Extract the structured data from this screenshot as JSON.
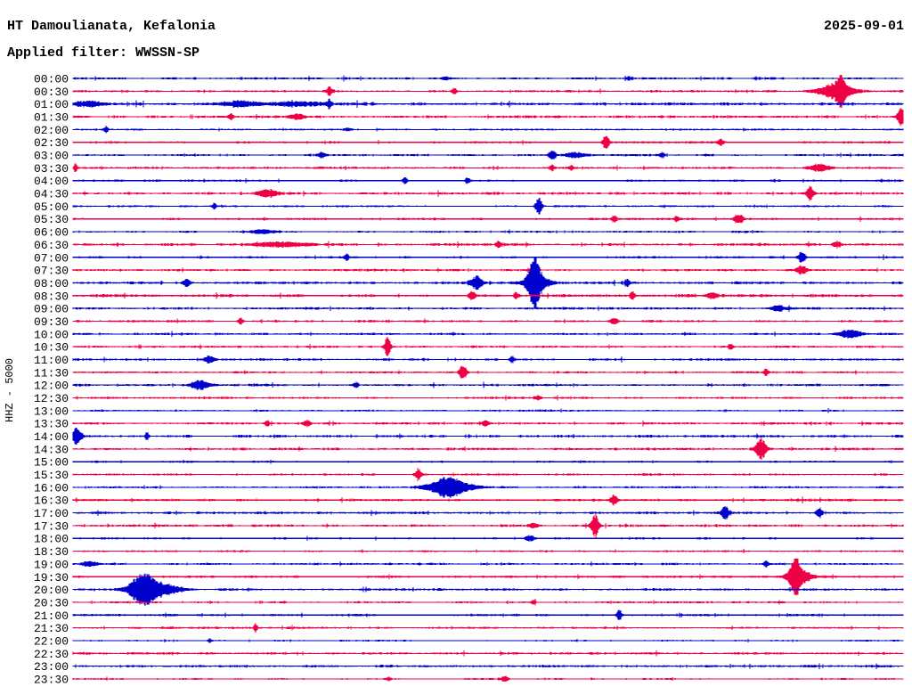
{
  "header": {
    "title": "HT Damoulianata, Kefalonia",
    "date": "2025-09-01",
    "filter": "Applied filter: WWSSN-SP"
  },
  "chart_data": {
    "type": "line",
    "subtype": "helicorder-seismogram",
    "title": "HT Damoulianata, Kefalonia",
    "date": "2025-09-01",
    "applied_filter": "WWSSN-SP",
    "ylabel": "HHZ - 5000",
    "channel": "HHZ",
    "scale": 5000,
    "minutes_per_row": 30,
    "time_start": "00:00",
    "time_end": "24:00",
    "legend_position": "none",
    "grid": false,
    "trace_colors": {
      "blue": "#0000cc",
      "red": "#ee0044"
    },
    "rows": [
      {
        "time": "00:00",
        "color": "blue",
        "noise": 1.0,
        "events": [
          {
            "x": 0.45,
            "amp": 1.5,
            "w": 4
          },
          {
            "x": 0.67,
            "amp": 2.0,
            "w": 3
          }
        ]
      },
      {
        "time": "00:30",
        "color": "red",
        "noise": 1.0,
        "events": [
          {
            "x": 0.309,
            "amp": 5,
            "w": 2
          },
          {
            "x": 0.459,
            "amp": 4,
            "w": 2
          },
          {
            "x": 0.92,
            "amp": 9,
            "w": 14
          },
          {
            "x": 0.925,
            "amp": 14,
            "w": 3
          }
        ]
      },
      {
        "time": "01:00",
        "color": "blue",
        "noise": 1.35,
        "events": [
          {
            "x": 0.02,
            "amp": 3,
            "w": 10
          },
          {
            "x": 0.2,
            "amp": 3,
            "w": 15
          },
          {
            "x": 0.27,
            "amp": 2.5,
            "w": 20
          },
          {
            "x": 0.309,
            "amp": 6,
            "w": 2
          }
        ]
      },
      {
        "time": "01:30",
        "color": "red",
        "noise": 1.1,
        "events": [
          {
            "x": 0.19,
            "amp": 4,
            "w": 2
          },
          {
            "x": 0.27,
            "amp": 3,
            "w": 6
          },
          {
            "x": 0.998,
            "amp": 13,
            "w": 3
          }
        ]
      },
      {
        "time": "02:00",
        "color": "blue",
        "noise": 0.85,
        "events": [
          {
            "x": 0.04,
            "amp": 3.5,
            "w": 2
          },
          {
            "x": 0.33,
            "amp": 2,
            "w": 3
          }
        ]
      },
      {
        "time": "02:30",
        "color": "red",
        "noise": 1.0,
        "events": [
          {
            "x": 0.642,
            "amp": 9,
            "w": 2.5
          },
          {
            "x": 0.78,
            "amp": 3.5,
            "w": 3
          }
        ]
      },
      {
        "time": "03:00",
        "color": "blue",
        "noise": 1.0,
        "events": [
          {
            "x": 0.3,
            "amp": 3,
            "w": 3
          },
          {
            "x": 0.578,
            "amp": 4.5,
            "w": 3
          },
          {
            "x": 0.605,
            "amp": 3,
            "w": 8
          },
          {
            "x": 0.71,
            "amp": 3,
            "w": 2
          }
        ]
      },
      {
        "time": "03:30",
        "color": "red",
        "noise": 1.0,
        "events": [
          {
            "x": 0.003,
            "amp": 5,
            "w": 1.5
          },
          {
            "x": 0.577,
            "amp": 3.5,
            "w": 2
          },
          {
            "x": 0.6,
            "amp": 3,
            "w": 2
          },
          {
            "x": 0.9,
            "amp": 4.5,
            "w": 8
          }
        ]
      },
      {
        "time": "04:00",
        "color": "blue",
        "noise": 1.0,
        "events": [
          {
            "x": 0.4,
            "amp": 4,
            "w": 2
          },
          {
            "x": 0.475,
            "amp": 4,
            "w": 2
          }
        ]
      },
      {
        "time": "04:30",
        "color": "red",
        "noise": 1.1,
        "events": [
          {
            "x": 0.235,
            "amp": 4,
            "w": 8
          },
          {
            "x": 0.888,
            "amp": 9,
            "w": 3
          }
        ]
      },
      {
        "time": "05:00",
        "color": "blue",
        "noise": 0.9,
        "events": [
          {
            "x": 0.17,
            "amp": 3.5,
            "w": 2
          },
          {
            "x": 0.561,
            "amp": 10,
            "w": 2.5
          }
        ]
      },
      {
        "time": "05:30",
        "color": "red",
        "noise": 1.0,
        "events": [
          {
            "x": 0.652,
            "amp": 4,
            "w": 2
          },
          {
            "x": 0.727,
            "amp": 3,
            "w": 2
          },
          {
            "x": 0.802,
            "amp": 6,
            "w": 4
          }
        ]
      },
      {
        "time": "06:00",
        "color": "blue",
        "noise": 0.9,
        "events": [
          {
            "x": 0.23,
            "amp": 2.5,
            "w": 10
          }
        ]
      },
      {
        "time": "06:30",
        "color": "red",
        "noise": 1.1,
        "events": [
          {
            "x": 0.25,
            "amp": 3,
            "w": 20
          },
          {
            "x": 0.513,
            "amp": 4,
            "w": 2
          },
          {
            "x": 0.92,
            "amp": 4,
            "w": 3
          }
        ]
      },
      {
        "time": "07:00",
        "color": "blue",
        "noise": 1.0,
        "events": [
          {
            "x": 0.33,
            "amp": 4,
            "w": 2
          },
          {
            "x": 0.878,
            "amp": 7,
            "w": 3
          }
        ]
      },
      {
        "time": "07:30",
        "color": "red",
        "noise": 1.0,
        "events": [
          {
            "x": 0.556,
            "amp": 10,
            "w": 2.5
          },
          {
            "x": 0.878,
            "amp": 5,
            "w": 4
          }
        ]
      },
      {
        "time": "08:00",
        "color": "blue",
        "noise": 1.2,
        "events": [
          {
            "x": 0.137,
            "amp": 5,
            "w": 3
          },
          {
            "x": 0.486,
            "amp": 7,
            "w": 5
          },
          {
            "x": 0.556,
            "amp": 25,
            "w": 4
          },
          {
            "x": 0.558,
            "amp": 10,
            "w": 10
          },
          {
            "x": 0.668,
            "amp": 4,
            "w": 2
          }
        ]
      },
      {
        "time": "08:30",
        "color": "red",
        "noise": 1.3,
        "events": [
          {
            "x": 0.481,
            "amp": 5,
            "w": 2.5
          },
          {
            "x": 0.534,
            "amp": 4,
            "w": 2
          },
          {
            "x": 0.674,
            "amp": 5,
            "w": 2
          },
          {
            "x": 0.77,
            "amp": 4,
            "w": 4
          }
        ]
      },
      {
        "time": "09:00",
        "color": "blue",
        "noise": 1.1,
        "events": [
          {
            "x": 0.85,
            "amp": 3,
            "w": 6
          }
        ]
      },
      {
        "time": "09:30",
        "color": "red",
        "noise": 1.0,
        "events": [
          {
            "x": 0.202,
            "amp": 3.5,
            "w": 2
          },
          {
            "x": 0.652,
            "amp": 3.5,
            "w": 3
          }
        ]
      },
      {
        "time": "10:00",
        "color": "blue",
        "noise": 1.0,
        "events": [
          {
            "x": 0.936,
            "amp": 5,
            "w": 9
          }
        ]
      },
      {
        "time": "10:30",
        "color": "red",
        "noise": 1.0,
        "events": [
          {
            "x": 0.379,
            "amp": 11,
            "w": 2.5
          },
          {
            "x": 0.792,
            "amp": 3.5,
            "w": 2
          }
        ]
      },
      {
        "time": "11:00",
        "color": "blue",
        "noise": 1.0,
        "events": [
          {
            "x": 0.164,
            "amp": 4,
            "w": 4
          },
          {
            "x": 0.529,
            "amp": 4,
            "w": 2
          }
        ]
      },
      {
        "time": "11:30",
        "color": "red",
        "noise": 1.0,
        "events": [
          {
            "x": 0.47,
            "amp": 8,
            "w": 3
          },
          {
            "x": 0.835,
            "amp": 4,
            "w": 2
          }
        ]
      },
      {
        "time": "12:00",
        "color": "blue",
        "noise": 1.1,
        "events": [
          {
            "x": 0.153,
            "amp": 5,
            "w": 7
          },
          {
            "x": 0.341,
            "amp": 3.5,
            "w": 2
          }
        ]
      },
      {
        "time": "12:30",
        "color": "red",
        "noise": 1.0,
        "events": [
          {
            "x": 0.56,
            "amp": 2.5,
            "w": 3
          }
        ]
      },
      {
        "time": "13:00",
        "color": "blue",
        "noise": 0.85,
        "events": []
      },
      {
        "time": "13:30",
        "color": "red",
        "noise": 1.0,
        "events": [
          {
            "x": 0.234,
            "amp": 3.5,
            "w": 2
          },
          {
            "x": 0.282,
            "amp": 4,
            "w": 3
          },
          {
            "x": 0.497,
            "amp": 3.5,
            "w": 3
          }
        ]
      },
      {
        "time": "14:00",
        "color": "blue",
        "noise": 1.1,
        "events": [
          {
            "x": 0.004,
            "amp": 9,
            "w": 4
          },
          {
            "x": 0.089,
            "amp": 5,
            "w": 1.5
          }
        ]
      },
      {
        "time": "14:30",
        "color": "red",
        "noise": 1.1,
        "events": [
          {
            "x": 0.829,
            "amp": 12,
            "w": 4
          }
        ]
      },
      {
        "time": "15:00",
        "color": "blue",
        "noise": 0.9,
        "events": []
      },
      {
        "time": "15:30",
        "color": "red",
        "noise": 1.0,
        "events": [
          {
            "x": 0.416,
            "amp": 7,
            "w": 2.5
          }
        ]
      },
      {
        "time": "16:00",
        "color": "blue",
        "noise": 1.0,
        "events": [
          {
            "x": 0.455,
            "amp": 8,
            "w": 18
          },
          {
            "x": 0.45,
            "amp": 5,
            "w": 8
          }
        ]
      },
      {
        "time": "16:30",
        "color": "red",
        "noise": 1.1,
        "events": [
          {
            "x": 0.652,
            "amp": 6,
            "w": 3
          }
        ]
      },
      {
        "time": "17:00",
        "color": "blue",
        "noise": 1.1,
        "events": [
          {
            "x": 0.786,
            "amp": 8,
            "w": 3
          },
          {
            "x": 0.899,
            "amp": 7,
            "w": 2.5
          }
        ]
      },
      {
        "time": "17:30",
        "color": "red",
        "noise": 1.1,
        "events": [
          {
            "x": 0.555,
            "amp": 3,
            "w": 4
          },
          {
            "x": 0.629,
            "amp": 14,
            "w": 3
          }
        ]
      },
      {
        "time": "18:00",
        "color": "blue",
        "noise": 0.9,
        "events": [
          {
            "x": 0.55,
            "amp": 3.5,
            "w": 4
          }
        ]
      },
      {
        "time": "18:30",
        "color": "red",
        "noise": 0.9,
        "events": []
      },
      {
        "time": "19:00",
        "color": "blue",
        "noise": 1.0,
        "events": [
          {
            "x": 0.02,
            "amp": 3,
            "w": 6
          },
          {
            "x": 0.835,
            "amp": 4,
            "w": 2
          }
        ]
      },
      {
        "time": "19:30",
        "color": "red",
        "noise": 1.0,
        "events": [
          {
            "x": 0.87,
            "amp": 19,
            "w": 4
          },
          {
            "x": 0.875,
            "amp": 8,
            "w": 10
          }
        ]
      },
      {
        "time": "20:00",
        "color": "blue",
        "noise": 1.1,
        "events": [
          {
            "x": 0.084,
            "amp": 15,
            "w": 10
          },
          {
            "x": 0.1,
            "amp": 7,
            "w": 18
          }
        ]
      },
      {
        "time": "20:30",
        "color": "red",
        "noise": 0.9,
        "events": [
          {
            "x": 0.555,
            "amp": 2.5,
            "w": 2
          }
        ]
      },
      {
        "time": "21:00",
        "color": "blue",
        "noise": 1.0,
        "events": [
          {
            "x": 0.658,
            "amp": 7,
            "w": 2
          }
        ]
      },
      {
        "time": "21:30",
        "color": "red",
        "noise": 1.0,
        "events": [
          {
            "x": 0.22,
            "amp": 5,
            "w": 1.5
          }
        ]
      },
      {
        "time": "22:00",
        "color": "blue",
        "noise": 0.7,
        "events": [
          {
            "x": 0.165,
            "amp": 3,
            "w": 1.5
          }
        ]
      },
      {
        "time": "22:30",
        "color": "red",
        "noise": 1.1,
        "events": []
      },
      {
        "time": "23:00",
        "color": "blue",
        "noise": 1.1,
        "events": []
      },
      {
        "time": "23:30",
        "color": "red",
        "noise": 0.8,
        "events": [
          {
            "x": 0.38,
            "amp": 2,
            "w": 2
          },
          {
            "x": 0.52,
            "amp": 3,
            "w": 3
          }
        ]
      }
    ]
  }
}
